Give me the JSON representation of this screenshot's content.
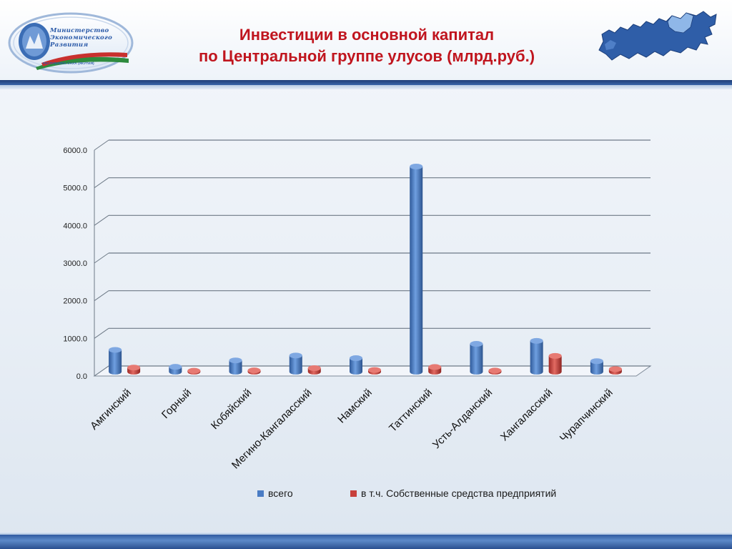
{
  "header": {
    "title_line1": "Инвестиции в основной капитал",
    "title_line2": "по Центральной группе улусов (млрд.руб.)",
    "logo_line1": "Министерство",
    "logo_line2": "Экономического",
    "logo_line3": "Развития",
    "logo_sub": "РЕСПУБЛИКА САХА (ЯКУТИЯ)"
  },
  "colors": {
    "series_total": "#4a7cc4",
    "series_own": "#c8403c",
    "title": "#c0151e"
  },
  "chart_data": {
    "type": "bar",
    "title": "",
    "xlabel": "",
    "ylabel": "",
    "ylim": [
      0,
      6000
    ],
    "yticks": [
      "0.0",
      "1000.0",
      "2000.0",
      "3000.0",
      "4000.0",
      "5000.0",
      "6000.0"
    ],
    "grid": true,
    "legend_position": "bottom",
    "categories": [
      "Амгинский",
      "Горный",
      "Кобяйский",
      "Мегино-Кангаласский",
      "Намский",
      "Таттинский",
      "Усть-Алданский",
      "Хангаласский",
      "Чурапчинский"
    ],
    "series": [
      {
        "name": "всего",
        "values": [
          580,
          130,
          300,
          430,
          360,
          5450,
          740,
          820,
          280
        ]
      },
      {
        "name": "в т.ч. Собственные средства предприятий",
        "values": [
          110,
          25,
          35,
          95,
          45,
          125,
          30,
          420,
          70
        ]
      }
    ]
  }
}
